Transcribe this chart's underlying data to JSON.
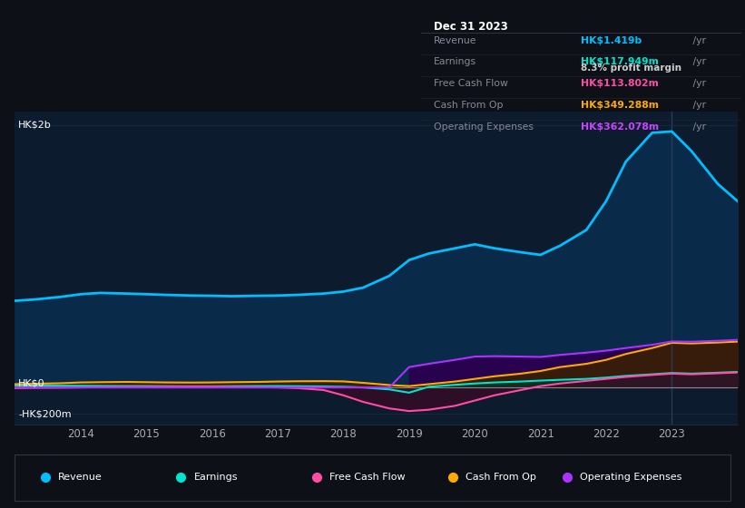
{
  "background_color": "#0d1117",
  "plot_bg_color": "#0d1b2e",
  "years": [
    2013.0,
    2013.3,
    2013.7,
    2014.0,
    2014.3,
    2014.7,
    2015.0,
    2015.3,
    2015.7,
    2016.0,
    2016.3,
    2016.7,
    2017.0,
    2017.3,
    2017.7,
    2018.0,
    2018.3,
    2018.7,
    2019.0,
    2019.3,
    2019.7,
    2020.0,
    2020.3,
    2020.7,
    2021.0,
    2021.3,
    2021.7,
    2022.0,
    2022.3,
    2022.7,
    2023.0,
    2023.3,
    2023.7,
    2024.0
  ],
  "revenue": [
    660,
    670,
    690,
    710,
    720,
    715,
    710,
    705,
    700,
    698,
    695,
    698,
    700,
    705,
    715,
    730,
    760,
    850,
    970,
    1020,
    1060,
    1090,
    1060,
    1030,
    1010,
    1080,
    1200,
    1420,
    1720,
    1940,
    1950,
    1800,
    1550,
    1419
  ],
  "earnings": [
    15,
    14,
    13,
    12,
    11,
    10,
    10,
    9,
    8,
    8,
    9,
    10,
    10,
    9,
    7,
    5,
    0,
    -15,
    -40,
    5,
    20,
    30,
    38,
    45,
    52,
    58,
    65,
    75,
    88,
    100,
    110,
    105,
    112,
    118
  ],
  "free_cash_flow": [
    -5,
    -3,
    -2,
    0,
    2,
    4,
    5,
    6,
    7,
    6,
    4,
    2,
    0,
    -5,
    -20,
    -60,
    -110,
    -160,
    -180,
    -170,
    -140,
    -100,
    -60,
    -20,
    10,
    30,
    50,
    65,
    80,
    95,
    105,
    100,
    108,
    114
  ],
  "cash_from_op": [
    25,
    28,
    32,
    38,
    40,
    42,
    40,
    38,
    37,
    38,
    40,
    42,
    45,
    47,
    48,
    46,
    35,
    18,
    10,
    25,
    45,
    65,
    85,
    105,
    125,
    155,
    180,
    210,
    255,
    300,
    340,
    335,
    342,
    349
  ],
  "operating_expenses": [
    0,
    0,
    0,
    0,
    0,
    0,
    0,
    0,
    0,
    0,
    0,
    0,
    0,
    0,
    0,
    0,
    0,
    0,
    155,
    180,
    210,
    235,
    238,
    235,
    232,
    248,
    265,
    280,
    300,
    325,
    350,
    348,
    355,
    362
  ],
  "revenue_color": "#00bfff",
  "earnings_color": "#00e5cc",
  "free_cash_flow_color": "#ff4da6",
  "cash_from_op_color": "#ffaa00",
  "operating_expenses_color": "#aa33ff",
  "ylim_min": -280,
  "ylim_max": 2100,
  "ytick_vals": [
    -200,
    0,
    2000
  ],
  "ytick_labels": [
    "-HK$200m",
    "HK$0",
    "HK$2b"
  ],
  "xtick_years": [
    2014,
    2015,
    2016,
    2017,
    2018,
    2019,
    2020,
    2021,
    2022,
    2023
  ],
  "grid_color": "#1a2a3a",
  "info_box": {
    "date": "Dec 31 2023",
    "rows": [
      {
        "label": "Revenue",
        "value": "HK$1.419b",
        "value_color": "#00bfff",
        "unit": " /yr",
        "sub": null
      },
      {
        "label": "Earnings",
        "value": "HK$117.949m",
        "value_color": "#00e5cc",
        "unit": " /yr",
        "sub": "8.3% profit margin"
      },
      {
        "label": "Free Cash Flow",
        "value": "HK$113.802m",
        "value_color": "#ff4da6",
        "unit": " /yr",
        "sub": null
      },
      {
        "label": "Cash From Op",
        "value": "HK$349.288m",
        "value_color": "#ffaa00",
        "unit": " /yr",
        "sub": null
      },
      {
        "label": "Operating Expenses",
        "value": "HK$362.078m",
        "value_color": "#cc44ff",
        "unit": " /yr",
        "sub": null
      }
    ]
  },
  "legend_items": [
    {
      "label": "Revenue",
      "color": "#00bfff"
    },
    {
      "label": "Earnings",
      "color": "#00e5cc"
    },
    {
      "label": "Free Cash Flow",
      "color": "#ff4da6"
    },
    {
      "label": "Cash From Op",
      "color": "#ffaa00"
    },
    {
      "label": "Operating Expenses",
      "color": "#aa33ff"
    }
  ]
}
